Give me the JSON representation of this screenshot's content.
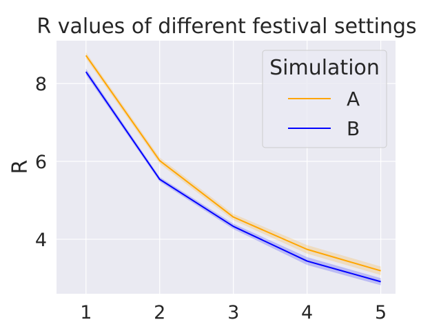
{
  "chart_data": {
    "type": "line",
    "title": "R values of different festival settings",
    "ylabel": "R",
    "x": [
      1,
      2,
      3,
      4,
      5
    ],
    "x_tick_labels": [
      "1",
      "2",
      "3",
      "4",
      "5"
    ],
    "y_ticks": [
      4,
      6,
      8
    ],
    "y_tick_labels": [
      "4",
      "6",
      "8"
    ],
    "xlim": [
      0.6,
      5.2
    ],
    "ylim": [
      2.6,
      9.1
    ],
    "grid": true,
    "legend": {
      "title": "Simulation",
      "placement": "top-right"
    },
    "series": [
      {
        "name": "A",
        "color": "#FFA500",
        "values": [
          8.72,
          6.02,
          4.57,
          3.74,
          3.19
        ],
        "ci_lower": [
          8.64,
          5.94,
          4.49,
          3.63,
          3.08
        ],
        "ci_upper": [
          8.8,
          6.1,
          4.65,
          3.85,
          3.3
        ]
      },
      {
        "name": "B",
        "color": "#0000FF",
        "values": [
          8.3,
          5.54,
          4.33,
          3.44,
          2.91
        ],
        "ci_lower": [
          8.22,
          5.48,
          4.26,
          3.34,
          2.82
        ],
        "ci_upper": [
          8.38,
          5.6,
          4.4,
          3.54,
          3.0
        ]
      }
    ]
  }
}
